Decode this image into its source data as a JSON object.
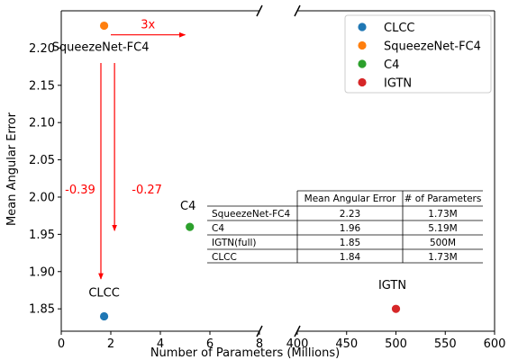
{
  "chart_data": {
    "type": "scatter",
    "title": "",
    "xlabel": "Number of Parameters (Millions)",
    "ylabel": "Mean Angular Error",
    "broken_x_axis": true,
    "xlim_left": [
      0,
      8
    ],
    "xlim_right": [
      400,
      600
    ],
    "ylim": [
      1.82,
      2.25
    ],
    "xticks_left": [
      "0",
      "2",
      "4",
      "6",
      "8"
    ],
    "xticks_right": [
      "400",
      "450",
      "500",
      "550",
      "600"
    ],
    "yticks": [
      "1.85",
      "1.90",
      "1.95",
      "2.00",
      "2.05",
      "2.10",
      "2.15",
      "2.20"
    ],
    "grid": false,
    "legend_position": "top-right",
    "series": [
      {
        "name": "CLCC",
        "color": "#1f77b4",
        "x": 1.73,
        "y": 1.84,
        "label": "CLCC"
      },
      {
        "name": "SqueezeNet-FC4",
        "color": "#ff7f0e",
        "x": 1.73,
        "y": 2.23,
        "label": "SqueezeNet-FC4"
      },
      {
        "name": "C4",
        "color": "#2ca02c",
        "x": 5.19,
        "y": 1.96,
        "label": "C4"
      },
      {
        "name": "IGTN",
        "color": "#d62728",
        "x": 500,
        "y": 1.85,
        "label": "IGTN"
      }
    ],
    "annotations": [
      {
        "text": "3x",
        "color": "#ff0000",
        "arrow": "right",
        "x_from": 2.0,
        "x_to": 5.0,
        "y": 2.225
      },
      {
        "text": "-0.39",
        "color": "#ff0000",
        "arrow": "down",
        "x": 1.6,
        "y_from": 2.18,
        "y_to": 1.89
      },
      {
        "text": "-0.27",
        "color": "#ff0000",
        "arrow": "down",
        "x": 2.15,
        "y_from": 2.18,
        "y_to": 1.955
      }
    ],
    "table": {
      "headers": [
        "",
        "Mean Angular Error",
        "# of Parameters"
      ],
      "rows": [
        [
          "SqueezeNet-FC4",
          "2.23",
          "1.73M"
        ],
        [
          "C4",
          "1.96",
          "5.19M"
        ],
        [
          "IGTN(full)",
          "1.85",
          "500M"
        ],
        [
          "CLCC",
          "1.84",
          "1.73M"
        ]
      ]
    }
  }
}
